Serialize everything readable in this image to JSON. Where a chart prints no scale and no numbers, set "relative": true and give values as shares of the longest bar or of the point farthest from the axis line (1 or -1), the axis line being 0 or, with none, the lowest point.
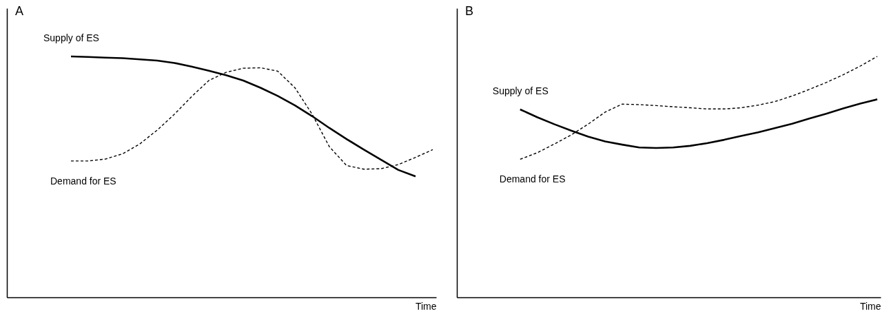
{
  "chart_data": [
    {
      "type": "line",
      "title": "A",
      "xlabel": "Time",
      "relative": true,
      "grid": false,
      "legend": false,
      "tick_labels": false,
      "categories": [
        null,
        null,
        null,
        null,
        null,
        null,
        null,
        null,
        null,
        null,
        null,
        null,
        null,
        null,
        null,
        null,
        null,
        null,
        null,
        null,
        null,
        null,
        null,
        null,
        null
      ],
      "series": [
        {
          "name": "Supply of ES",
          "color": "#000000",
          "line_style": "solid",
          "values": [
            null,
            null,
            null,
            1.0,
            0.998,
            0.995,
            0.993,
            0.988,
            0.983,
            0.973,
            0.958,
            0.941,
            0.922,
            0.9,
            0.87,
            0.836,
            0.797,
            0.752,
            0.703,
            0.657,
            0.613,
            0.571,
            0.529,
            0.502,
            null
          ]
        },
        {
          "name": "Demand for ES",
          "color": "#000000",
          "line_style": "dashed",
          "values": [
            null,
            null,
            null,
            0.566,
            0.566,
            0.574,
            0.596,
            0.637,
            0.694,
            0.76,
            0.833,
            0.9,
            0.934,
            0.951,
            0.953,
            0.939,
            0.87,
            0.76,
            0.625,
            0.547,
            0.532,
            0.534,
            0.551,
            0.581,
            0.613
          ]
        }
      ]
    },
    {
      "type": "line",
      "title": "B",
      "xlabel": "Time",
      "relative": true,
      "grid": false,
      "legend": false,
      "tick_labels": false,
      "categories": [
        null,
        null,
        null,
        null,
        null,
        null,
        null,
        null,
        null,
        null,
        null,
        null,
        null,
        null,
        null,
        null,
        null,
        null,
        null,
        null,
        null,
        null,
        null,
        null,
        null
      ],
      "series": [
        {
          "name": "Supply of ES",
          "color": "#000000",
          "line_style": "solid",
          "values": [
            null,
            null,
            null,
            0.78,
            0.748,
            0.719,
            0.692,
            0.667,
            0.647,
            0.634,
            0.622,
            0.62,
            0.622,
            0.629,
            0.64,
            0.654,
            0.67,
            0.685,
            0.703,
            0.721,
            0.742,
            0.762,
            0.784,
            0.804,
            0.822
          ]
        },
        {
          "name": "Demand for ES",
          "color": "#000000",
          "line_style": "dashed",
          "values": [
            null,
            null,
            null,
            0.573,
            0.6,
            0.636,
            0.674,
            0.719,
            0.769,
            0.802,
            0.8,
            0.796,
            0.791,
            0.787,
            0.782,
            0.782,
            0.787,
            0.798,
            0.813,
            0.836,
            0.863,
            0.892,
            0.924,
            0.96,
            1.0
          ]
        }
      ]
    }
  ]
}
